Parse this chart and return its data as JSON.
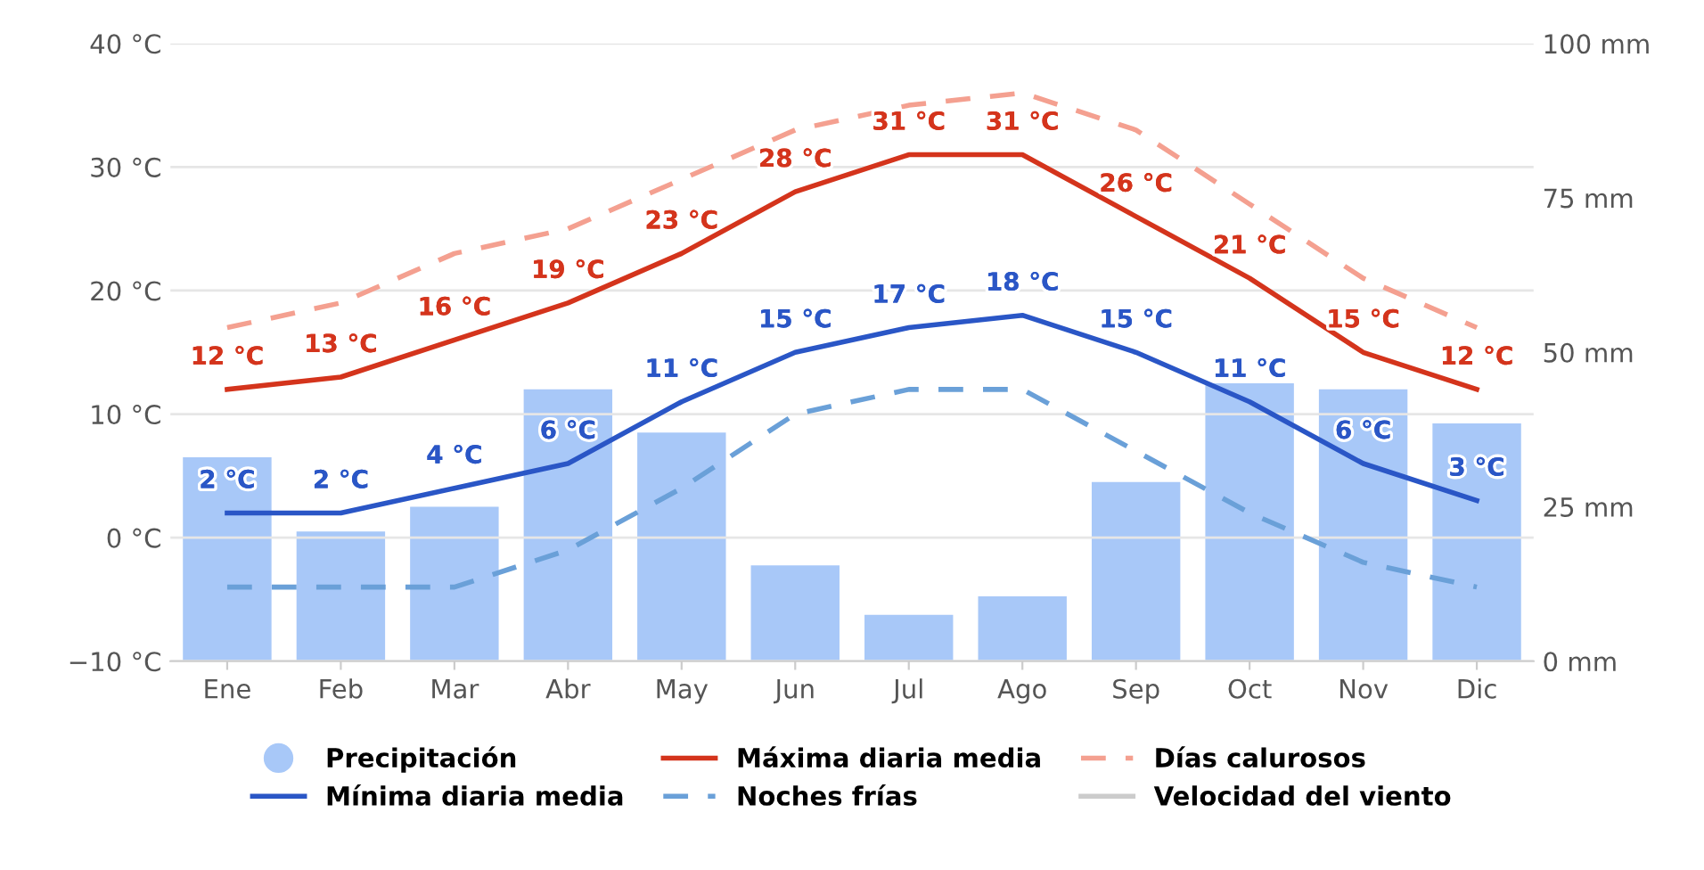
{
  "chart_data": {
    "type": "line",
    "categories": [
      "Ene",
      "Feb",
      "Mar",
      "Abr",
      "May",
      "Jun",
      "Jul",
      "Ago",
      "Sep",
      "Oct",
      "Nov",
      "Dic"
    ],
    "ylim": [
      -10,
      40
    ],
    "yticks": [
      {
        "value": -10,
        "label": "−10 °C"
      },
      {
        "value": 0,
        "label": "0 °C"
      },
      {
        "value": 10,
        "label": "10 °C"
      },
      {
        "value": 20,
        "label": "20 °C"
      },
      {
        "value": 30,
        "label": "30 °C"
      },
      {
        "value": 40,
        "label": "40 °C"
      }
    ],
    "y2lim": [
      0,
      100
    ],
    "y2ticks": [
      {
        "value": 0,
        "label": "0 mm"
      },
      {
        "value": 25,
        "label": "25 mm"
      },
      {
        "value": 50,
        "label": "50 mm"
      },
      {
        "value": 75,
        "label": "75 mm"
      },
      {
        "value": 100,
        "label": "100 mm"
      }
    ],
    "grid": "y",
    "legend": "bottom",
    "series": [
      {
        "name": "Precipitación",
        "type": "bar",
        "axis": "y2",
        "color": "#a8c8f8",
        "values": [
          33,
          21,
          25,
          44,
          37,
          15.5,
          7.5,
          10.5,
          29,
          45,
          44,
          38.5
        ]
      },
      {
        "name": "Máxima diaria media",
        "color": "#d4341c",
        "line_style": "solid",
        "values": [
          12,
          13,
          16,
          19,
          23,
          28,
          31,
          31,
          26,
          21,
          15,
          12
        ],
        "value_labels": [
          "12 °C",
          "13 °C",
          "16 °C",
          "19 °C",
          "23 °C",
          "28 °C",
          "31 °C",
          "31 °C",
          "26 °C",
          "21 °C",
          "15 °C",
          "12 °C"
        ]
      },
      {
        "name": "Días calurosos",
        "color": "#f4a090",
        "line_style": "dashed",
        "values": [
          17,
          19,
          23,
          25,
          29,
          33,
          35,
          36,
          33,
          27,
          21,
          17
        ]
      },
      {
        "name": "Mínima diaria media",
        "color": "#2a56c6",
        "line_style": "solid",
        "values": [
          2,
          2,
          4,
          6,
          11,
          15,
          17,
          18,
          15,
          11,
          6,
          3
        ],
        "value_labels": [
          "2 °C",
          "2 °C",
          "4 °C",
          "6 °C",
          "11 °C",
          "15 °C",
          "17 °C",
          "18 °C",
          "15 °C",
          "11 °C",
          "6 °C",
          "3 °C"
        ]
      },
      {
        "name": "Noches frías",
        "color": "#6aa0d8",
        "line_style": "dashed",
        "values": [
          -4,
          -4,
          -4,
          -1,
          4,
          10,
          12,
          12,
          7,
          2,
          -2,
          -4
        ]
      },
      {
        "name": "Velocidad del viento",
        "color": "#cccccc",
        "line_style": "solid",
        "values": [
          null,
          null,
          null,
          null,
          null,
          null,
          null,
          null,
          null,
          null,
          null,
          null
        ]
      }
    ]
  }
}
